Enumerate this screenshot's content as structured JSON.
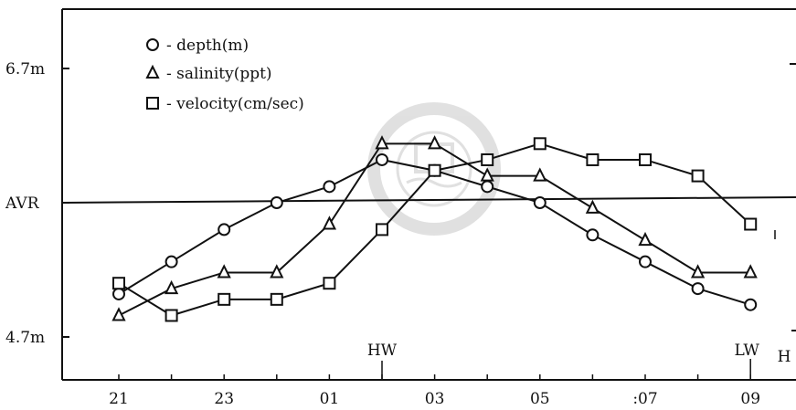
{
  "chart_data": {
    "type": "line",
    "x_categories": [
      "21",
      "22",
      "23",
      "24",
      "01",
      "02",
      "03",
      "04",
      "05",
      "06",
      "07",
      "08",
      "09"
    ],
    "x_tick_labels": [
      "21",
      "23",
      "01",
      "03",
      "05",
      ":07",
      "09"
    ],
    "x_tick_label_positions": [
      "21",
      "23",
      "01",
      "03",
      "05",
      "07",
      "09"
    ],
    "y_tick_labels": [
      "6.7m",
      "AVR",
      "4.7m"
    ],
    "ylim": [
      0,
      10
    ],
    "grid": false,
    "legend_position": "top-left",
    "reference_line": {
      "label": "AVR",
      "value": 5.1
    },
    "annotations": [
      {
        "text": "HW",
        "x": "02"
      },
      {
        "text": "LW",
        "x": "09"
      },
      {
        "text": "H",
        "x": "edge-right"
      }
    ],
    "series": [
      {
        "name": "depth(m)",
        "marker": "circle",
        "x": [
          "21",
          "22",
          "23",
          "24",
          "01",
          "02",
          "03",
          "04",
          "05",
          "06",
          "07",
          "08",
          "09"
        ],
        "values": [
          3.8,
          4.4,
          5.0,
          5.5,
          5.8,
          6.3,
          6.1,
          5.8,
          5.5,
          4.9,
          4.4,
          3.9,
          3.6
        ]
      },
      {
        "name": "salinity(ppt)",
        "marker": "triangle",
        "x": [
          "21",
          "22",
          "23",
          "24",
          "01",
          "02",
          "03",
          "04",
          "05",
          "06",
          "07",
          "08",
          "09"
        ],
        "values": [
          3.4,
          3.9,
          4.2,
          4.2,
          5.1,
          6.6,
          6.6,
          6.0,
          6.0,
          5.4,
          4.8,
          4.2,
          4.2
        ]
      },
      {
        "name": "velocity(cm/sec)",
        "marker": "square",
        "x": [
          "21",
          "22",
          "23",
          "24",
          "01",
          "02",
          "03",
          "04",
          "05",
          "06",
          "07",
          "08",
          "09"
        ],
        "values": [
          4.0,
          3.4,
          3.7,
          3.7,
          4.0,
          5.0,
          6.1,
          6.3,
          6.6,
          6.3,
          6.3,
          6.0,
          5.1
        ]
      }
    ]
  },
  "legend": {
    "items": [
      {
        "symbol": "circle",
        "label": "- depth(m)"
      },
      {
        "symbol": "triangle",
        "label": "- salinity(ppt)"
      },
      {
        "symbol": "square",
        "label": "- velocity(cm/sec)"
      }
    ]
  },
  "colors": {
    "ink": "#111111",
    "background": "#ffffff",
    "watermark": "#c8c8c8"
  },
  "watermark": {
    "top_text": "MARITIME UNIV",
    "year": "1945",
    "bottom_text": "해 양 대 학"
  }
}
